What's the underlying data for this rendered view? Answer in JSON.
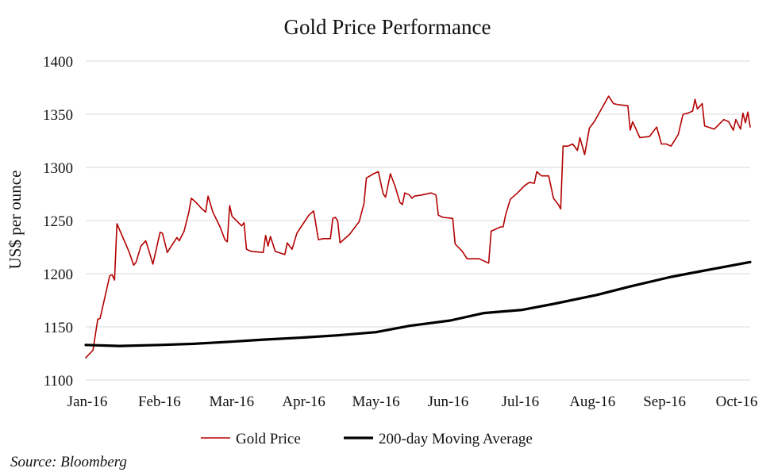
{
  "source_note": "Source: Bloomberg",
  "chart_data": {
    "type": "line",
    "title": "Gold Price Performance",
    "xlabel": "",
    "ylabel": "US$ per ounce",
    "ylim": [
      1100,
      1400
    ],
    "yticks": [
      1100,
      1150,
      1200,
      1250,
      1300,
      1350,
      1400
    ],
    "xticks": [
      "Jan-16",
      "Feb-16",
      "Mar-16",
      "Apr-16",
      "May-16",
      "Jun-16",
      "Jul-16",
      "Aug-16",
      "Sep-16",
      "Oct-16"
    ],
    "x_start": "2016-01-01",
    "x_end": "2016-10-04",
    "grid": true,
    "legend_position": "bottom",
    "series": [
      {
        "name": "Gold Price",
        "color": "#b30000",
        "points": [
          [
            "2016-01-01",
            1121
          ],
          [
            "2016-01-04",
            1128
          ],
          [
            "2016-01-06",
            1157
          ],
          [
            "2016-01-07",
            1158
          ],
          [
            "2016-01-11",
            1198
          ],
          [
            "2016-01-12",
            1199
          ],
          [
            "2016-01-13",
            1194
          ],
          [
            "2016-01-14",
            1247
          ],
          [
            "2016-01-19",
            1221
          ],
          [
            "2016-01-21",
            1208
          ],
          [
            "2016-01-22",
            1211
          ],
          [
            "2016-01-24",
            1226
          ],
          [
            "2016-01-26",
            1231
          ],
          [
            "2016-01-27",
            1224
          ],
          [
            "2016-01-29",
            1209
          ],
          [
            "2016-02-01",
            1239
          ],
          [
            "2016-02-02",
            1238
          ],
          [
            "2016-02-04",
            1220
          ],
          [
            "2016-02-08",
            1234
          ],
          [
            "2016-02-09",
            1231
          ],
          [
            "2016-02-11",
            1240
          ],
          [
            "2016-02-13",
            1258
          ],
          [
            "2016-02-14",
            1271
          ],
          [
            "2016-02-16",
            1267
          ],
          [
            "2016-02-18",
            1262
          ],
          [
            "2016-02-20",
            1258
          ],
          [
            "2016-02-21",
            1273
          ],
          [
            "2016-02-23",
            1258
          ],
          [
            "2016-02-26",
            1244
          ],
          [
            "2016-02-28",
            1232
          ],
          [
            "2016-02-29",
            1230
          ],
          [
            "2016-03-01",
            1264
          ],
          [
            "2016-03-02",
            1254
          ],
          [
            "2016-03-06",
            1245
          ],
          [
            "2016-03-07",
            1248
          ],
          [
            "2016-03-08",
            1223
          ],
          [
            "2016-03-10",
            1221
          ],
          [
            "2016-03-15",
            1220
          ],
          [
            "2016-03-16",
            1236
          ],
          [
            "2016-03-17",
            1226
          ],
          [
            "2016-03-18",
            1235
          ],
          [
            "2016-03-20",
            1221
          ],
          [
            "2016-03-24",
            1218
          ],
          [
            "2016-03-25",
            1229
          ],
          [
            "2016-03-27",
            1223
          ],
          [
            "2016-03-29",
            1238
          ],
          [
            "2016-04-03",
            1255
          ],
          [
            "2016-04-05",
            1259
          ],
          [
            "2016-04-07",
            1232
          ],
          [
            "2016-04-09",
            1233
          ],
          [
            "2016-04-12",
            1233
          ],
          [
            "2016-04-13",
            1252
          ],
          [
            "2016-04-14",
            1253
          ],
          [
            "2016-04-15",
            1250
          ],
          [
            "2016-04-16",
            1229
          ],
          [
            "2016-04-20",
            1237
          ],
          [
            "2016-04-24",
            1249
          ],
          [
            "2016-04-26",
            1266
          ],
          [
            "2016-04-27",
            1290
          ],
          [
            "2016-04-30",
            1294
          ],
          [
            "2016-05-02",
            1296
          ],
          [
            "2016-05-04",
            1275
          ],
          [
            "2016-05-05",
            1272
          ],
          [
            "2016-05-07",
            1294
          ],
          [
            "2016-05-09",
            1282
          ],
          [
            "2016-05-11",
            1267
          ],
          [
            "2016-05-12",
            1265
          ],
          [
            "2016-05-13",
            1276
          ],
          [
            "2016-05-15",
            1274
          ],
          [
            "2016-05-16",
            1271
          ],
          [
            "2016-05-17",
            1273
          ],
          [
            "2016-05-20",
            1274
          ],
          [
            "2016-05-24",
            1276
          ],
          [
            "2016-05-26",
            1274
          ],
          [
            "2016-05-27",
            1255
          ],
          [
            "2016-05-29",
            1253
          ],
          [
            "2016-06-02",
            1252
          ],
          [
            "2016-06-03",
            1228
          ],
          [
            "2016-06-06",
            1221
          ],
          [
            "2016-06-08",
            1214
          ],
          [
            "2016-06-13",
            1214
          ],
          [
            "2016-06-16",
            1211
          ],
          [
            "2016-06-17",
            1210
          ],
          [
            "2016-06-18",
            1240
          ],
          [
            "2016-06-22",
            1244
          ],
          [
            "2016-06-23",
            1244
          ],
          [
            "2016-06-24",
            1255
          ],
          [
            "2016-06-26",
            1270
          ],
          [
            "2016-06-29",
            1276
          ],
          [
            "2016-07-02",
            1283
          ],
          [
            "2016-07-04",
            1286
          ],
          [
            "2016-07-06",
            1285
          ],
          [
            "2016-07-07",
            1296
          ],
          [
            "2016-07-09",
            1292
          ],
          [
            "2016-07-12",
            1292
          ],
          [
            "2016-07-14",
            1271
          ],
          [
            "2016-07-16",
            1265
          ],
          [
            "2016-07-17",
            1261
          ],
          [
            "2016-07-18",
            1320
          ],
          [
            "2016-07-20",
            1320
          ],
          [
            "2016-07-22",
            1322
          ],
          [
            "2016-07-24",
            1316
          ],
          [
            "2016-07-25",
            1328
          ],
          [
            "2016-07-27",
            1312
          ],
          [
            "2016-07-29",
            1337
          ],
          [
            "2016-07-31",
            1343
          ],
          [
            "2016-08-04",
            1359
          ],
          [
            "2016-08-06",
            1367
          ],
          [
            "2016-08-08",
            1360
          ],
          [
            "2016-08-10",
            1359
          ],
          [
            "2016-08-14",
            1358
          ],
          [
            "2016-08-15",
            1335
          ],
          [
            "2016-08-16",
            1343
          ],
          [
            "2016-08-19",
            1328
          ],
          [
            "2016-08-23",
            1329
          ],
          [
            "2016-08-26",
            1338
          ],
          [
            "2016-08-28",
            1322
          ],
          [
            "2016-08-30",
            1322
          ],
          [
            "2016-09-01",
            1320
          ],
          [
            "2016-09-04",
            1331
          ],
          [
            "2016-09-06",
            1350
          ],
          [
            "2016-09-08",
            1351
          ],
          [
            "2016-09-10",
            1353
          ],
          [
            "2016-09-11",
            1364
          ],
          [
            "2016-09-12",
            1355
          ],
          [
            "2016-09-14",
            1360
          ],
          [
            "2016-09-15",
            1339
          ],
          [
            "2016-09-19",
            1336
          ],
          [
            "2016-09-23",
            1345
          ],
          [
            "2016-09-25",
            1343
          ],
          [
            "2016-09-27",
            1335
          ],
          [
            "2016-09-28",
            1345
          ],
          [
            "2016-09-30",
            1336
          ],
          [
            "2016-10-01",
            1351
          ],
          [
            "2016-10-02",
            1342
          ],
          [
            "2016-10-03",
            1352
          ],
          [
            "2016-10-04",
            1338
          ]
        ]
      },
      {
        "name": "200-day Moving Average",
        "color": "#000000",
        "points": [
          [
            "2016-01-01",
            1133
          ],
          [
            "2016-01-15",
            1132
          ],
          [
            "2016-02-01",
            1133
          ],
          [
            "2016-02-15",
            1134
          ],
          [
            "2016-03-01",
            1136
          ],
          [
            "2016-03-15",
            1138
          ],
          [
            "2016-04-01",
            1140
          ],
          [
            "2016-04-15",
            1142
          ],
          [
            "2016-05-01",
            1145
          ],
          [
            "2016-05-15",
            1151
          ],
          [
            "2016-06-01",
            1156
          ],
          [
            "2016-06-15",
            1163
          ],
          [
            "2016-07-01",
            1166
          ],
          [
            "2016-07-15",
            1172
          ],
          [
            "2016-08-01",
            1180
          ],
          [
            "2016-08-15",
            1188
          ],
          [
            "2016-09-01",
            1197
          ],
          [
            "2016-09-15",
            1203
          ],
          [
            "2016-10-04",
            1211
          ]
        ]
      }
    ]
  }
}
